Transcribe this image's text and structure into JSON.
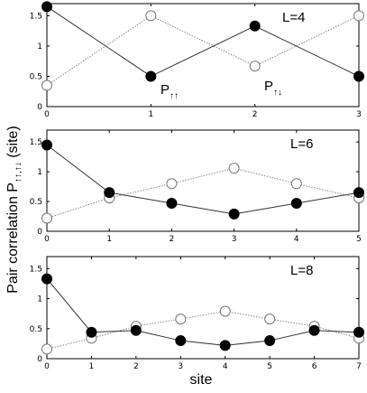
{
  "ylabel_main": "Pair correlation P",
  "ylabel_sub": "↑↑,↑↓",
  "ylabel_unit": " (site)",
  "xlabel": "site",
  "chart_data": [
    {
      "type": "line",
      "annotation": "L=4",
      "x": [
        0,
        1,
        2,
        3
      ],
      "xlim": [
        0,
        3
      ],
      "ylim": [
        0,
        1.7
      ],
      "yticks": [
        "0",
        "0.5",
        "1",
        "1.5"
      ],
      "yticks_values": [
        0,
        0.5,
        1,
        1.5
      ],
      "series": [
        {
          "name": "P↑↑",
          "marker": "filled-circle",
          "values": [
            1.65,
            0.5,
            1.33,
            0.5
          ]
        },
        {
          "name": "P↑↓",
          "marker": "open-circle",
          "values": [
            0.35,
            1.5,
            0.67,
            1.5
          ]
        }
      ],
      "series_labels": [
        {
          "main": "P",
          "sub": "↑↑"
        },
        {
          "main": "P",
          "sub": "↑↓"
        }
      ]
    },
    {
      "type": "line",
      "annotation": "L=6",
      "x": [
        0,
        1,
        2,
        3,
        4,
        5
      ],
      "xlim": [
        0,
        5
      ],
      "ylim": [
        0,
        1.7
      ],
      "yticks": [
        "0",
        "0.5",
        "1",
        "1.5"
      ],
      "yticks_values": [
        0,
        0.5,
        1,
        1.5
      ],
      "series": [
        {
          "marker": "filled-circle",
          "values": [
            1.45,
            0.65,
            0.47,
            0.29,
            0.47,
            0.65
          ]
        },
        {
          "marker": "open-circle",
          "values": [
            0.22,
            0.56,
            0.8,
            1.06,
            0.8,
            0.56
          ]
        }
      ]
    },
    {
      "type": "line",
      "annotation": "L=8",
      "x": [
        0,
        1,
        2,
        3,
        4,
        5,
        6,
        7
      ],
      "xlim": [
        0,
        7
      ],
      "ylim": [
        0,
        1.7
      ],
      "yticks": [
        "0",
        "0.5",
        "1",
        "1.5"
      ],
      "yticks_values": [
        0,
        0.5,
        1,
        1.5
      ],
      "series": [
        {
          "marker": "filled-circle",
          "values": [
            1.33,
            0.44,
            0.47,
            0.3,
            0.22,
            0.3,
            0.47,
            0.44
          ]
        },
        {
          "marker": "open-circle",
          "values": [
            0.16,
            0.34,
            0.54,
            0.66,
            0.79,
            0.66,
            0.54,
            0.34
          ]
        }
      ]
    }
  ]
}
